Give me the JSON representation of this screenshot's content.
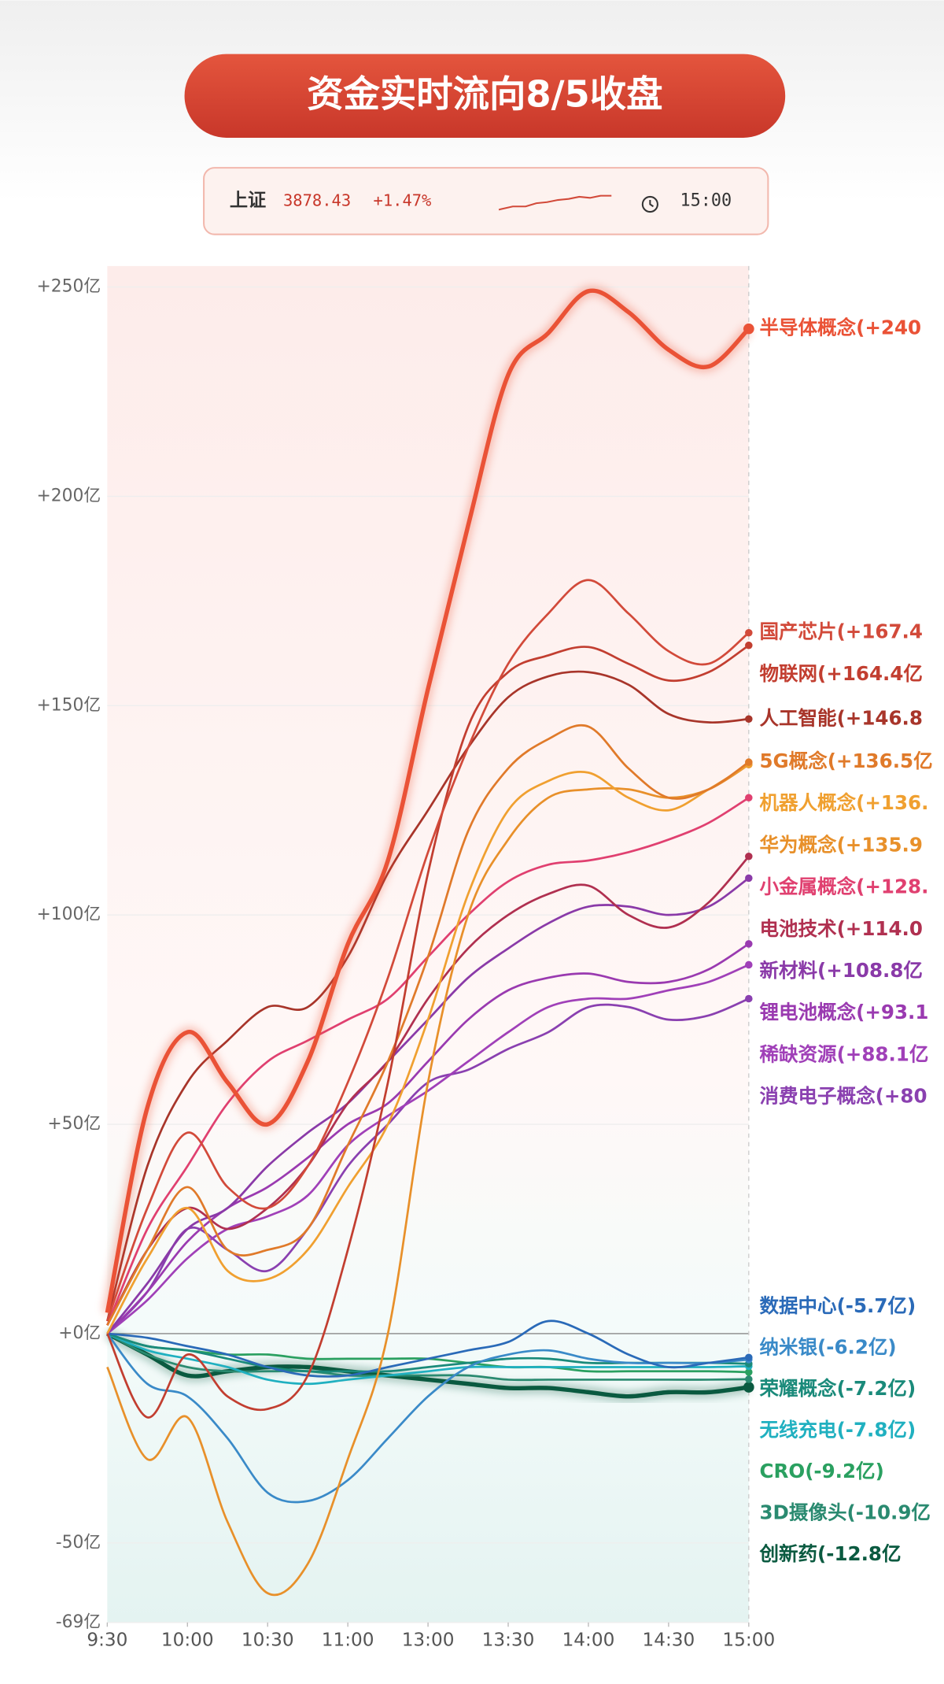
{
  "header": {
    "title": "资金实时流向8/5收盘",
    "index_name": "上证",
    "index_value": "3878.43",
    "index_change": "+1.47%",
    "time": "15:00"
  },
  "chart_data": {
    "type": "line",
    "x": [
      0,
      15,
      30,
      45,
      60,
      75,
      90,
      105,
      120,
      135,
      150,
      165,
      180,
      195,
      210,
      225,
      240
    ],
    "xlim": [
      0,
      240
    ],
    "xticks": [
      {
        "value": 0,
        "label": "9:30"
      },
      {
        "value": 30,
        "label": "10:00"
      },
      {
        "value": 60,
        "label": "10:30"
      },
      {
        "value": 90,
        "label": "11:00"
      },
      {
        "value": 120,
        "label": "13:00"
      },
      {
        "value": 150,
        "label": "13:30"
      },
      {
        "value": 180,
        "label": "14:00"
      },
      {
        "value": 210,
        "label": "14:30"
      },
      {
        "value": 240,
        "label": "15:00"
      }
    ],
    "ylim": [
      -69,
      255
    ],
    "yticks": [
      {
        "value": 250,
        "label": "+250亿"
      },
      {
        "value": 200,
        "label": "+200亿"
      },
      {
        "value": 150,
        "label": "+150亿"
      },
      {
        "value": 100,
        "label": "+100亿"
      },
      {
        "value": 50,
        "label": "+50亿"
      },
      {
        "value": 0,
        "label": "+0亿"
      },
      {
        "value": -50,
        "label": "-50亿"
      },
      {
        "value": -69,
        "label": "-69亿"
      }
    ],
    "grid": true,
    "series": [
      {
        "name": "半导体概念",
        "label": "半导体概念(+240",
        "color": "#ea5236",
        "bold": true,
        "values": [
          5,
          54,
          72,
          60,
          50,
          65,
          93,
          113,
          154,
          193,
          229,
          239,
          249,
          244,
          235,
          231,
          240
        ]
      },
      {
        "name": "国产芯片",
        "label": "国产芯片(+167.4",
        "color": "#d24a3a",
        "values": [
          3,
          30,
          48,
          35,
          30,
          40,
          60,
          85,
          115,
          140,
          160,
          172,
          180,
          172,
          163,
          160,
          167.4
        ]
      },
      {
        "name": "物联网",
        "label": "物联网(+164.4亿",
        "color": "#c23e30",
        "values": [
          0,
          -20,
          -5,
          -15,
          -18,
          -10,
          20,
          60,
          110,
          145,
          158,
          162,
          164,
          160,
          156,
          158,
          164.4
        ]
      },
      {
        "name": "人工智能",
        "label": "人工智能(+146.8",
        "color": "#a8352a",
        "values": [
          3,
          40,
          60,
          70,
          78,
          78,
          90,
          110,
          125,
          140,
          152,
          157,
          158,
          155,
          148,
          146,
          146.8
        ]
      },
      {
        "name": "5G概念",
        "label": "5G概念(+136.5亿",
        "color": "#e07a2a",
        "values": [
          2,
          20,
          35,
          20,
          20,
          25,
          45,
          65,
          90,
          120,
          135,
          142,
          145,
          135,
          128,
          130,
          136.5
        ]
      },
      {
        "name": "机器人概念",
        "label": "机器人概念(+136.",
        "color": "#f0a030",
        "values": [
          0,
          18,
          30,
          15,
          13,
          20,
          35,
          50,
          75,
          105,
          125,
          132,
          134,
          128,
          125,
          130,
          136
        ]
      },
      {
        "name": "华为概念",
        "label": "华为概念(+135.9",
        "color": "#e8902a",
        "values": [
          -8,
          -30,
          -20,
          -45,
          -62,
          -55,
          -30,
          0,
          60,
          100,
          118,
          128,
          130,
          130,
          128,
          130,
          135.9
        ]
      },
      {
        "name": "小金属概念",
        "label": "小金属概念(+128.",
        "color": "#e04070",
        "values": [
          2,
          25,
          40,
          55,
          65,
          70,
          75,
          80,
          90,
          100,
          108,
          112,
          113,
          115,
          118,
          122,
          128
        ]
      },
      {
        "name": "电池技术",
        "label": "电池技术(+114.0",
        "color": "#b03050",
        "values": [
          2,
          20,
          30,
          25,
          30,
          40,
          55,
          65,
          80,
          92,
          100,
          105,
          107,
          100,
          97,
          103,
          114
        ]
      },
      {
        "name": "新材料",
        "label": "新材料(+108.8亿",
        "color": "#8a3aa8",
        "values": [
          0,
          12,
          25,
          30,
          40,
          48,
          55,
          65,
          75,
          85,
          92,
          98,
          102,
          102,
          100,
          102,
          108.8
        ]
      },
      {
        "name": "锂电池概念",
        "label": "锂电池概念(+93.1",
        "color": "#9a3ab0",
        "values": [
          0,
          10,
          22,
          30,
          35,
          42,
          50,
          55,
          65,
          75,
          82,
          85,
          86,
          84,
          84,
          87,
          93.1
        ]
      },
      {
        "name": "稀缺资源",
        "label": "稀缺资源(+88.1亿",
        "color": "#a040b8",
        "values": [
          0,
          8,
          18,
          25,
          28,
          33,
          45,
          52,
          58,
          65,
          72,
          78,
          80,
          80,
          82,
          84,
          88.1
        ]
      },
      {
        "name": "消费电子概念",
        "label": "消费电子概念(+80",
        "color": "#8a40b0",
        "values": [
          0,
          10,
          25,
          20,
          15,
          25,
          40,
          50,
          60,
          63,
          68,
          72,
          78,
          78,
          75,
          76,
          80
        ]
      },
      {
        "name": "数据中心",
        "label": "数据中心(-5.7亿)",
        "color": "#2a6ab8",
        "values": [
          0,
          -1,
          -3,
          -5,
          -8,
          -10,
          -10,
          -8,
          -6,
          -4,
          -2,
          3,
          0,
          -5,
          -8,
          -7,
          -5.7
        ]
      },
      {
        "name": "纳米银",
        "label": "纳米银(-6.2亿)",
        "color": "#3a8ac8",
        "values": [
          0,
          -12,
          -15,
          -25,
          -38,
          -40,
          -35,
          -25,
          -15,
          -8,
          -5,
          -4,
          -6,
          -7,
          -7,
          -7,
          -6.2
        ]
      },
      {
        "name": "荣耀概念",
        "label": "荣耀概念(-7.2亿)",
        "color": "#1a8a7a",
        "values": [
          0,
          -3,
          -4,
          -6,
          -8,
          -9,
          -9,
          -9,
          -8,
          -7,
          -6,
          -6,
          -7,
          -7,
          -7,
          -7,
          -7.2
        ]
      },
      {
        "name": "无线充电",
        "label": "无线充电(-7.8亿)",
        "color": "#20b0c0",
        "values": [
          0,
          -4,
          -6,
          -8,
          -11,
          -12,
          -11,
          -10,
          -9,
          -8,
          -8,
          -8,
          -8,
          -8,
          -8,
          -8,
          -7.8
        ]
      },
      {
        "name": "CRO",
        "label": "CRO(-9.2亿)",
        "color": "#2aa060",
        "values": [
          0,
          -3,
          -4,
          -5,
          -5,
          -6,
          -6,
          -6,
          -6,
          -7,
          -8,
          -8,
          -9,
          -9,
          -9,
          -9,
          -9.2
        ]
      },
      {
        "name": "3D摄像头",
        "label": "3D摄像头(-10.9亿",
        "color": "#2a8a70",
        "values": [
          0,
          -5,
          -8,
          -9,
          -9,
          -9,
          -10,
          -10,
          -10,
          -10,
          -11,
          -11,
          -11,
          -11,
          -11,
          -11,
          -10.9
        ]
      },
      {
        "name": "创新药",
        "label": "创新药(-12.8亿",
        "color": "#0a5a40",
        "bold": true,
        "values": [
          0,
          -5,
          -10,
          -9,
          -8,
          -8,
          -9,
          -10,
          -11,
          -12,
          -13,
          -13,
          -14,
          -15,
          -14,
          -14,
          -12.8
        ]
      }
    ]
  }
}
